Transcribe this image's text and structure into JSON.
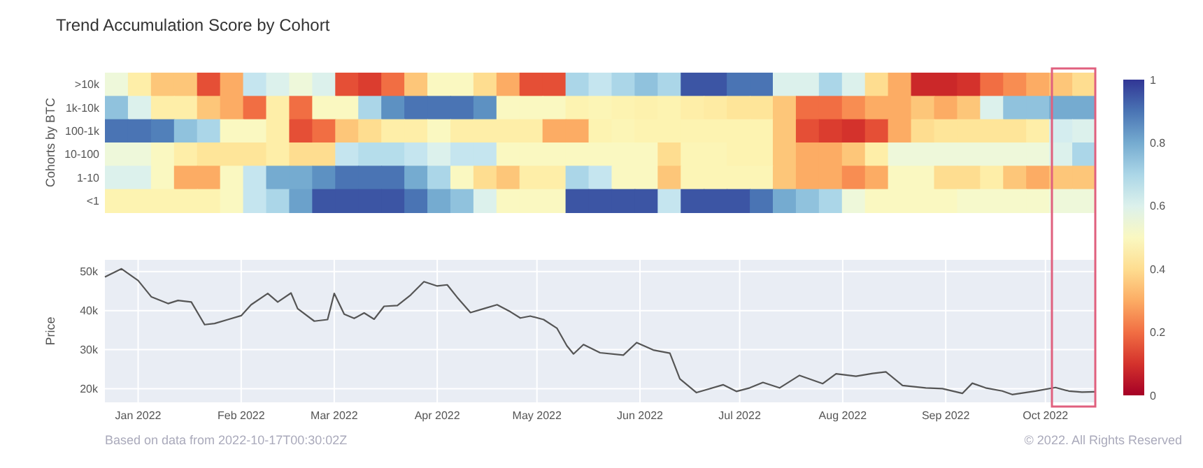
{
  "chart_data": [
    {
      "type": "heatmap",
      "title": "Trend Accumulation Score by Cohort",
      "ylabel": "Cohorts by BTC",
      "tick_labels": "y",
      "categories": [
        null,
        null,
        null,
        null,
        null,
        null,
        null,
        null,
        null,
        null,
        null,
        null,
        null,
        null,
        null,
        null,
        null,
        null,
        null,
        null,
        null,
        null,
        null,
        null,
        null,
        null,
        null,
        null,
        null,
        null,
        null,
        null,
        null,
        null,
        null,
        null,
        null,
        null,
        null,
        null,
        null,
        null,
        null
      ],
      "y_categories": [
        ">10k",
        "1k-10k",
        "100-1k",
        "10-100",
        "1-10",
        "<1"
      ],
      "cells": [
        [
          0.55,
          0.45,
          0.35,
          0.35,
          0.15,
          0.3,
          0.65,
          0.6,
          0.55,
          0.6,
          0.15,
          0.12,
          0.2,
          0.35,
          0.5,
          0.5,
          0.4,
          0.3,
          0.15,
          0.15,
          0.7,
          0.65,
          0.7,
          0.75,
          0.7,
          0.95,
          0.95,
          0.9,
          0.9,
          0.6,
          0.6,
          0.7,
          0.6,
          0.4,
          0.3,
          0.08,
          0.08,
          0.1,
          0.2,
          0.25,
          0.3,
          0.35,
          0.4
        ],
        [
          0.75,
          0.6,
          0.45,
          0.45,
          0.35,
          0.3,
          0.2,
          0.45,
          0.2,
          0.5,
          0.5,
          0.7,
          0.85,
          0.9,
          0.9,
          0.9,
          0.85,
          0.5,
          0.5,
          0.5,
          0.47,
          0.48,
          0.47,
          0.46,
          0.47,
          0.45,
          0.44,
          0.42,
          0.42,
          0.35,
          0.2,
          0.2,
          0.25,
          0.3,
          0.3,
          0.35,
          0.3,
          0.35,
          0.6,
          0.75,
          0.75,
          0.8,
          0.8
        ],
        [
          0.9,
          0.9,
          0.88,
          0.75,
          0.7,
          0.5,
          0.5,
          0.45,
          0.15,
          0.2,
          0.35,
          0.4,
          0.45,
          0.45,
          0.5,
          0.45,
          0.45,
          0.45,
          0.45,
          0.3,
          0.3,
          0.47,
          0.48,
          0.47,
          0.47,
          0.47,
          0.47,
          0.47,
          0.47,
          0.35,
          0.15,
          0.12,
          0.1,
          0.15,
          0.3,
          0.4,
          0.42,
          0.42,
          0.42,
          0.42,
          0.45,
          0.62,
          0.6
        ],
        [
          0.55,
          0.55,
          0.5,
          0.45,
          0.42,
          0.42,
          0.42,
          0.45,
          0.4,
          0.4,
          0.65,
          0.68,
          0.68,
          0.65,
          0.6,
          0.65,
          0.65,
          0.5,
          0.5,
          0.5,
          0.5,
          0.5,
          0.5,
          0.5,
          0.4,
          0.48,
          0.48,
          0.47,
          0.47,
          0.35,
          0.3,
          0.3,
          0.35,
          0.45,
          0.55,
          0.55,
          0.55,
          0.55,
          0.55,
          0.55,
          0.55,
          0.6,
          0.7
        ],
        [
          0.6,
          0.6,
          0.5,
          0.3,
          0.3,
          0.5,
          0.65,
          0.8,
          0.8,
          0.85,
          0.9,
          0.9,
          0.9,
          0.8,
          0.7,
          0.5,
          0.4,
          0.35,
          0.45,
          0.45,
          0.7,
          0.65,
          0.5,
          0.5,
          0.35,
          0.48,
          0.48,
          0.48,
          0.48,
          0.35,
          0.3,
          0.3,
          0.25,
          0.3,
          0.5,
          0.5,
          0.4,
          0.4,
          0.45,
          0.35,
          0.3,
          0.35,
          0.35
        ],
        [
          0.47,
          0.47,
          0.47,
          0.47,
          0.47,
          0.5,
          0.65,
          0.7,
          0.82,
          0.95,
          0.95,
          0.95,
          0.95,
          0.9,
          0.8,
          0.75,
          0.6,
          0.5,
          0.5,
          0.5,
          0.95,
          0.95,
          0.95,
          0.95,
          0.65,
          0.95,
          0.95,
          0.95,
          0.9,
          0.8,
          0.75,
          0.7,
          0.55,
          0.5,
          0.5,
          0.5,
          0.5,
          0.52,
          0.52,
          0.52,
          0.52,
          0.55,
          0.55
        ]
      ],
      "clim": [
        0,
        1
      ],
      "cticks": [
        0,
        0.2,
        0.4,
        0.6,
        0.8,
        1
      ]
    },
    {
      "type": "line",
      "ylabel": "Price",
      "grid": true,
      "xlim": [
        "2021-12-22",
        "2022-10-16"
      ],
      "xticks": [
        {
          "value": "2022-01-01",
          "label": "Jan 2022"
        },
        {
          "value": "2022-02-01",
          "label": "Feb 2022"
        },
        {
          "value": "2022-03-01",
          "label": "Mar 2022"
        },
        {
          "value": "2022-04-01",
          "label": "Apr 2022"
        },
        {
          "value": "2022-05-01",
          "label": "May 2022"
        },
        {
          "value": "2022-06-01",
          "label": "Jun 2022"
        },
        {
          "value": "2022-07-01",
          "label": "Jul 2022"
        },
        {
          "value": "2022-08-01",
          "label": "Aug 2022"
        },
        {
          "value": "2022-09-01",
          "label": "Sep 2022"
        },
        {
          "value": "2022-10-01",
          "label": "Oct 2022"
        }
      ],
      "ylim": [
        16500,
        53000
      ],
      "yticks": [
        {
          "value": 20000,
          "label": "20k"
        },
        {
          "value": 30000,
          "label": "30k"
        },
        {
          "value": 40000,
          "label": "40k"
        },
        {
          "value": 50000,
          "label": "50k"
        }
      ],
      "annotations": [
        "Based on data from 2022-10-17T00:30:02Z",
        "© 2022. All Rights Reserved"
      ],
      "series": [
        {
          "color": "#555555",
          "x": [
            "2021-12-22",
            "2021-12-27",
            "2022-01-01",
            "2022-01-05",
            "2022-01-10",
            "2022-01-13",
            "2022-01-17",
            "2022-01-21",
            "2022-01-24",
            "2022-01-28",
            "2022-02-01",
            "2022-02-04",
            "2022-02-09",
            "2022-02-12",
            "2022-02-16",
            "2022-02-18",
            "2022-02-23",
            "2022-02-27",
            "2022-03-01",
            "2022-03-04",
            "2022-03-07",
            "2022-03-10",
            "2022-03-13",
            "2022-03-16",
            "2022-03-20",
            "2022-03-24",
            "2022-03-28",
            "2022-04-01",
            "2022-04-04",
            "2022-04-07",
            "2022-04-11",
            "2022-04-15",
            "2022-04-19",
            "2022-04-23",
            "2022-04-26",
            "2022-04-29",
            "2022-05-03",
            "2022-05-07",
            "2022-05-10",
            "2022-05-12",
            "2022-05-15",
            "2022-05-20",
            "2022-05-27",
            "2022-05-31",
            "2022-06-05",
            "2022-06-10",
            "2022-06-13",
            "2022-06-18",
            "2022-06-22",
            "2022-06-26",
            "2022-06-30",
            "2022-07-04",
            "2022-07-08",
            "2022-07-13",
            "2022-07-19",
            "2022-07-26",
            "2022-07-30",
            "2022-08-05",
            "2022-08-10",
            "2022-08-14",
            "2022-08-19",
            "2022-08-26",
            "2022-08-31",
            "2022-09-06",
            "2022-09-09",
            "2022-09-13",
            "2022-09-18",
            "2022-09-21",
            "2022-09-28",
            "2022-10-04",
            "2022-10-08",
            "2022-10-12",
            "2022-10-16"
          ],
          "values": [
            48600,
            50700,
            47700,
            43500,
            41800,
            42600,
            42200,
            36400,
            36700,
            37700,
            38700,
            41500,
            44400,
            42200,
            44500,
            40500,
            37300,
            37700,
            44400,
            39100,
            38000,
            39400,
            37800,
            41100,
            41300,
            44000,
            47400,
            46300,
            46600,
            43400,
            39500,
            40500,
            41500,
            39700,
            38100,
            38600,
            37700,
            35500,
            31000,
            28900,
            31300,
            29200,
            28600,
            31800,
            29900,
            29100,
            22500,
            19000,
            20000,
            21000,
            19300,
            20200,
            21600,
            20200,
            23400,
            21300,
            23800,
            23200,
            23900,
            24300,
            20800,
            20200,
            20000,
            18800,
            21400,
            20200,
            19400,
            18500,
            19400,
            20300,
            19400,
            19100,
            19200
          ]
        }
      ]
    }
  ]
}
